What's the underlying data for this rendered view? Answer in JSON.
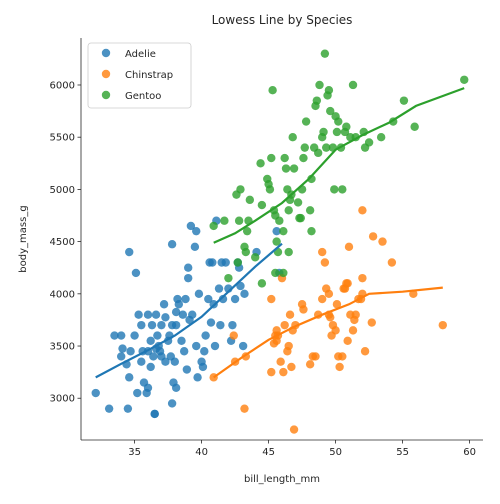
{
  "chart_data": {
    "type": "scatter",
    "title": "Lowess Line by Species",
    "xlabel": "bill_length_mm",
    "ylabel": "body_mass_g",
    "xlim": [
      31,
      61
    ],
    "ylim": [
      2600,
      6450
    ],
    "xticks": [
      35,
      40,
      45,
      50,
      55,
      60
    ],
    "yticks": [
      3000,
      3500,
      4000,
      4500,
      5000,
      5500,
      6000
    ],
    "xtick_labels": [
      "35",
      "40",
      "45",
      "50",
      "55",
      "60"
    ],
    "ytick_labels": [
      "3000",
      "3500",
      "4000",
      "4500",
      "5000",
      "5500",
      "6000"
    ],
    "grid": false,
    "legend_position": "top-left",
    "series": [
      {
        "name": "Adelie",
        "color": "#1f77b4",
        "points": [
          [
            32.1,
            3050
          ],
          [
            33.1,
            2900
          ],
          [
            33.5,
            3600
          ],
          [
            34.0,
            3400
          ],
          [
            34.1,
            3475
          ],
          [
            34.4,
            3325
          ],
          [
            34.5,
            2900
          ],
          [
            34.6,
            3200
          ],
          [
            34.6,
            4400
          ],
          [
            34.7,
            3450
          ],
          [
            35.0,
            3600
          ],
          [
            35.1,
            4200
          ],
          [
            35.2,
            3050
          ],
          [
            35.3,
            3800
          ],
          [
            35.5,
            3700
          ],
          [
            35.5,
            3350
          ],
          [
            35.6,
            3450
          ],
          [
            35.7,
            3150
          ],
          [
            35.9,
            3050
          ],
          [
            36.0,
            3800
          ],
          [
            36.0,
            3450
          ],
          [
            36.0,
            3100
          ],
          [
            36.2,
            3300
          ],
          [
            36.2,
            3550
          ],
          [
            36.3,
            3700
          ],
          [
            36.4,
            3400
          ],
          [
            36.5,
            2850
          ],
          [
            36.6,
            3800
          ],
          [
            36.6,
            3475
          ],
          [
            36.7,
            3600
          ],
          [
            36.8,
            3500
          ],
          [
            36.9,
            3450
          ],
          [
            37.0,
            3400
          ],
          [
            37.0,
            3700
          ],
          [
            37.2,
            3900
          ],
          [
            37.3,
            3350
          ],
          [
            37.3,
            3775
          ],
          [
            37.5,
            3550
          ],
          [
            37.6,
            3600
          ],
          [
            37.7,
            3400
          ],
          [
            37.8,
            3700
          ],
          [
            37.8,
            4475
          ],
          [
            37.9,
            3150
          ],
          [
            38.0,
            3350
          ],
          [
            38.1,
            3700
          ],
          [
            38.1,
            3825
          ],
          [
            38.2,
            3950
          ],
          [
            38.3,
            3900
          ],
          [
            38.5,
            3550
          ],
          [
            38.6,
            3800
          ],
          [
            38.7,
            3450
          ],
          [
            38.8,
            3950
          ],
          [
            38.9,
            3275
          ],
          [
            39.0,
            4250
          ],
          [
            39.1,
            3750
          ],
          [
            39.2,
            4650
          ],
          [
            39.3,
            3800
          ],
          [
            39.5,
            4450
          ],
          [
            39.6,
            3500
          ],
          [
            39.6,
            4600
          ],
          [
            39.7,
            3200
          ],
          [
            39.8,
            4000
          ],
          [
            40.0,
            3350
          ],
          [
            40.1,
            3300
          ],
          [
            40.2,
            3450
          ],
          [
            40.3,
            3600
          ],
          [
            40.5,
            3950
          ],
          [
            40.6,
            4300
          ],
          [
            40.7,
            3725
          ],
          [
            40.8,
            4300
          ],
          [
            40.9,
            3900
          ],
          [
            41.0,
            3500
          ],
          [
            41.1,
            4700
          ],
          [
            41.3,
            4050
          ],
          [
            41.4,
            3700
          ],
          [
            41.5,
            4300
          ],
          [
            41.6,
            3950
          ],
          [
            41.8,
            4300
          ],
          [
            42.0,
            4050
          ],
          [
            42.2,
            3550
          ],
          [
            42.3,
            3700
          ],
          [
            42.5,
            3950
          ],
          [
            42.7,
            4300
          ],
          [
            42.8,
            4250
          ],
          [
            42.9,
            4075
          ],
          [
            43.1,
            3500
          ],
          [
            43.2,
            4000
          ],
          [
            44.1,
            4400
          ],
          [
            45.6,
            4600
          ],
          [
            45.8,
            4200
          ],
          [
            36.5,
            2850
          ],
          [
            37.8,
            2950
          ],
          [
            38.1,
            3100
          ],
          [
            34.0,
            3600
          ],
          [
            39.0,
            4150
          ]
        ],
        "lowess": [
          [
            32.1,
            3200
          ],
          [
            34,
            3330
          ],
          [
            36,
            3460
          ],
          [
            38,
            3600
          ],
          [
            40,
            3780
          ],
          [
            42,
            4020
          ],
          [
            44,
            4260
          ],
          [
            46,
            4480
          ]
        ]
      },
      {
        "name": "Chinstrap",
        "color": "#ff7f0e",
        "points": [
          [
            40.9,
            3200
          ],
          [
            42.4,
            3600
          ],
          [
            42.5,
            3350
          ],
          [
            43.2,
            2900
          ],
          [
            43.3,
            3400
          ],
          [
            45.2,
            3250
          ],
          [
            45.2,
            3950
          ],
          [
            45.4,
            3525
          ],
          [
            45.5,
            3600
          ],
          [
            45.6,
            3650
          ],
          [
            45.7,
            3600
          ],
          [
            45.9,
            3350
          ],
          [
            46.0,
            4150
          ],
          [
            46.1,
            3250
          ],
          [
            46.2,
            3700
          ],
          [
            46.4,
            3450
          ],
          [
            46.5,
            3500
          ],
          [
            46.6,
            3800
          ],
          [
            46.7,
            3300
          ],
          [
            46.8,
            3650
          ],
          [
            46.9,
            2700
          ],
          [
            47.0,
            3700
          ],
          [
            47.5,
            3900
          ],
          [
            47.6,
            3850
          ],
          [
            48.1,
            3325
          ],
          [
            48.3,
            3400
          ],
          [
            48.5,
            3400
          ],
          [
            48.7,
            3800
          ],
          [
            49.0,
            3950
          ],
          [
            49.0,
            4400
          ],
          [
            49.2,
            4300
          ],
          [
            49.3,
            4050
          ],
          [
            49.5,
            3800
          ],
          [
            49.6,
            3775
          ],
          [
            49.7,
            3600
          ],
          [
            49.8,
            3700
          ],
          [
            50.0,
            3650
          ],
          [
            50.1,
            3900
          ],
          [
            50.2,
            3400
          ],
          [
            50.3,
            3300
          ],
          [
            50.5,
            3400
          ],
          [
            50.6,
            4050
          ],
          [
            50.7,
            4050
          ],
          [
            50.8,
            4100
          ],
          [
            50.9,
            3550
          ],
          [
            51.0,
            4450
          ],
          [
            51.1,
            3800
          ],
          [
            51.3,
            3650
          ],
          [
            51.4,
            3750
          ],
          [
            51.5,
            3800
          ],
          [
            51.7,
            3950
          ],
          [
            51.9,
            3950
          ],
          [
            52.0,
            4150
          ],
          [
            52.0,
            4800
          ],
          [
            52.2,
            3450
          ],
          [
            52.7,
            3725
          ],
          [
            52.8,
            4550
          ],
          [
            53.5,
            4500
          ],
          [
            54.2,
            4300
          ],
          [
            55.8,
            4000
          ],
          [
            58.0,
            3700
          ],
          [
            52.0,
            4000
          ],
          [
            50.9,
            4100
          ],
          [
            49.5,
            4000
          ],
          [
            45.6,
            3550
          ]
        ],
        "lowess": [
          [
            40.9,
            3200
          ],
          [
            43,
            3390
          ],
          [
            45,
            3560
          ],
          [
            47,
            3690
          ],
          [
            49,
            3800
          ],
          [
            51,
            3900
          ],
          [
            52.5,
            4000
          ],
          [
            55,
            4020
          ],
          [
            58,
            4060
          ]
        ]
      },
      {
        "name": "Gentoo",
        "color": "#2ca02c",
        "points": [
          [
            40.9,
            4650
          ],
          [
            41.7,
            4700
          ],
          [
            42.0,
            4150
          ],
          [
            42.6,
            4950
          ],
          [
            42.7,
            4300
          ],
          [
            42.8,
            4700
          ],
          [
            42.9,
            5000
          ],
          [
            43.2,
            4450
          ],
          [
            43.3,
            4400
          ],
          [
            43.4,
            4600
          ],
          [
            43.5,
            4700
          ],
          [
            43.6,
            4900
          ],
          [
            44.0,
            4350
          ],
          [
            44.4,
            5250
          ],
          [
            44.5,
            4850
          ],
          [
            44.9,
            5100
          ],
          [
            45.0,
            5050
          ],
          [
            45.1,
            5000
          ],
          [
            45.2,
            5300
          ],
          [
            45.3,
            5950
          ],
          [
            45.4,
            4800
          ],
          [
            45.5,
            4750
          ],
          [
            45.6,
            4500
          ],
          [
            45.7,
            4400
          ],
          [
            45.8,
            4700
          ],
          [
            46.1,
            4600
          ],
          [
            46.2,
            5300
          ],
          [
            46.3,
            5200
          ],
          [
            46.4,
            5000
          ],
          [
            46.5,
            4800
          ],
          [
            46.6,
            4900
          ],
          [
            46.7,
            4950
          ],
          [
            46.8,
            5500
          ],
          [
            46.9,
            5200
          ],
          [
            47.2,
            4875
          ],
          [
            47.3,
            4725
          ],
          [
            47.4,
            4725
          ],
          [
            47.5,
            5000
          ],
          [
            47.6,
            5300
          ],
          [
            47.7,
            5400
          ],
          [
            47.8,
            5650
          ],
          [
            48.1,
            4800
          ],
          [
            48.2,
            5100
          ],
          [
            48.4,
            5400
          ],
          [
            48.5,
            5800
          ],
          [
            48.6,
            5850
          ],
          [
            48.7,
            5350
          ],
          [
            48.8,
            6000
          ],
          [
            49.0,
            5500
          ],
          [
            49.1,
            5550
          ],
          [
            49.2,
            6300
          ],
          [
            49.3,
            5400
          ],
          [
            49.4,
            5900
          ],
          [
            49.5,
            5950
          ],
          [
            49.6,
            5750
          ],
          [
            49.8,
            5400
          ],
          [
            49.9,
            5000
          ],
          [
            50.0,
            5700
          ],
          [
            50.1,
            5550
          ],
          [
            50.2,
            5650
          ],
          [
            50.4,
            5400
          ],
          [
            50.5,
            5000
          ],
          [
            50.7,
            5550
          ],
          [
            50.8,
            5600
          ],
          [
            51.1,
            5500
          ],
          [
            51.3,
            6000
          ],
          [
            51.5,
            5500
          ],
          [
            52.1,
            5550
          ],
          [
            52.2,
            5400
          ],
          [
            52.5,
            5450
          ],
          [
            53.4,
            5500
          ],
          [
            54.3,
            5650
          ],
          [
            55.1,
            5850
          ],
          [
            55.9,
            5600
          ],
          [
            59.6,
            6050
          ],
          [
            45.5,
            4200
          ],
          [
            46.1,
            4200
          ],
          [
            44.5,
            4100
          ],
          [
            46.5,
            4400
          ],
          [
            48.2,
            4600
          ]
        ],
        "lowess": [
          [
            40.9,
            4490
          ],
          [
            42.5,
            4580
          ],
          [
            44,
            4700
          ],
          [
            46,
            4870
          ],
          [
            48,
            5100
          ],
          [
            50,
            5380
          ],
          [
            52,
            5520
          ],
          [
            54,
            5640
          ],
          [
            56,
            5800
          ],
          [
            59.6,
            5970
          ]
        ]
      }
    ]
  }
}
